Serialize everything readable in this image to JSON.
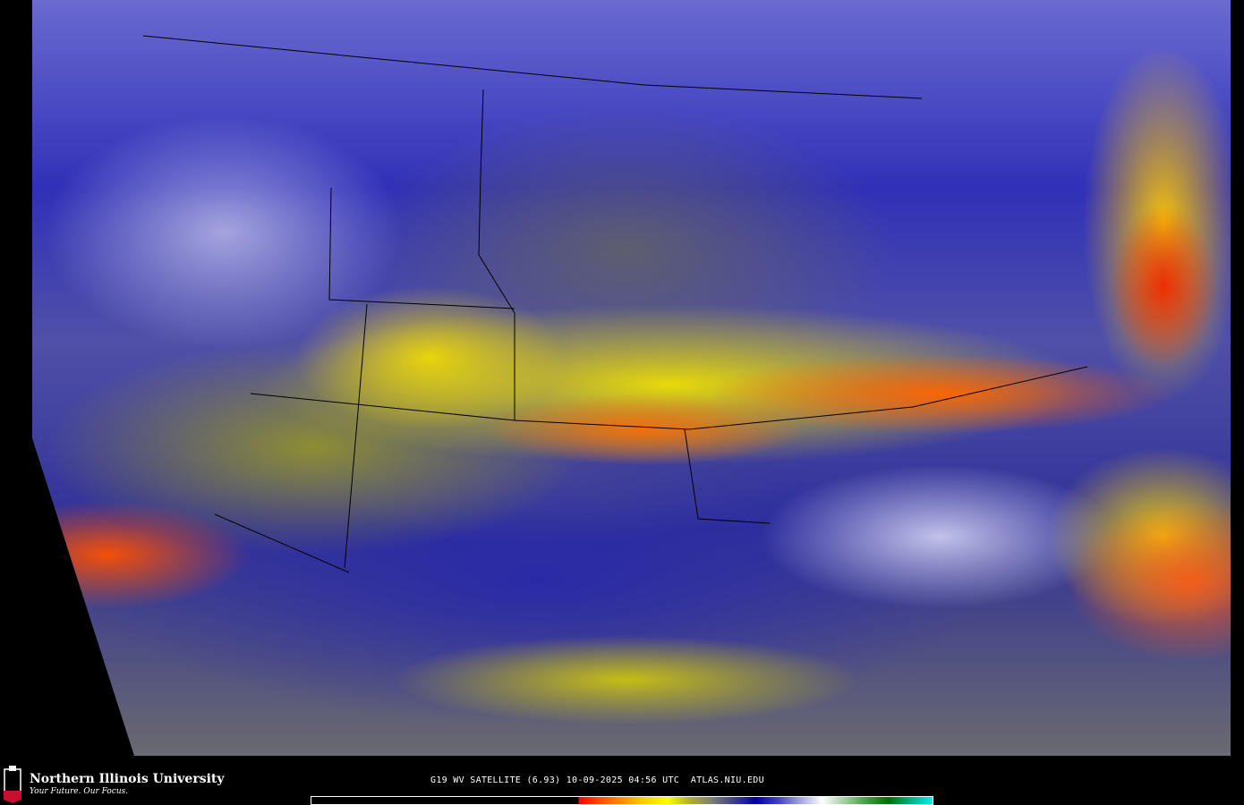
{
  "map": {
    "product": "water-vapor satellite imagery",
    "region": "continental United States"
  },
  "footer": {
    "logo_text": "NIU",
    "university_name": "Northern Illinois University",
    "tagline": "Your Future. Our Focus.",
    "caption": "G19 WV SATELLITE (6.93) 10-09-2025 04:56 UTC  ATLAS.NIU.EDU"
  },
  "colorbar": {
    "colors": [
      "#000000",
      "#ff0000",
      "#ff5000",
      "#ff9000",
      "#ffd000",
      "#ffff00",
      "#b0b030",
      "#808070",
      "#404090",
      "#0000a0",
      "#4040c0",
      "#a0a0e0",
      "#ffffff",
      "#a0d0a0",
      "#40a040",
      "#007000",
      "#00b080",
      "#00f0f0"
    ]
  }
}
